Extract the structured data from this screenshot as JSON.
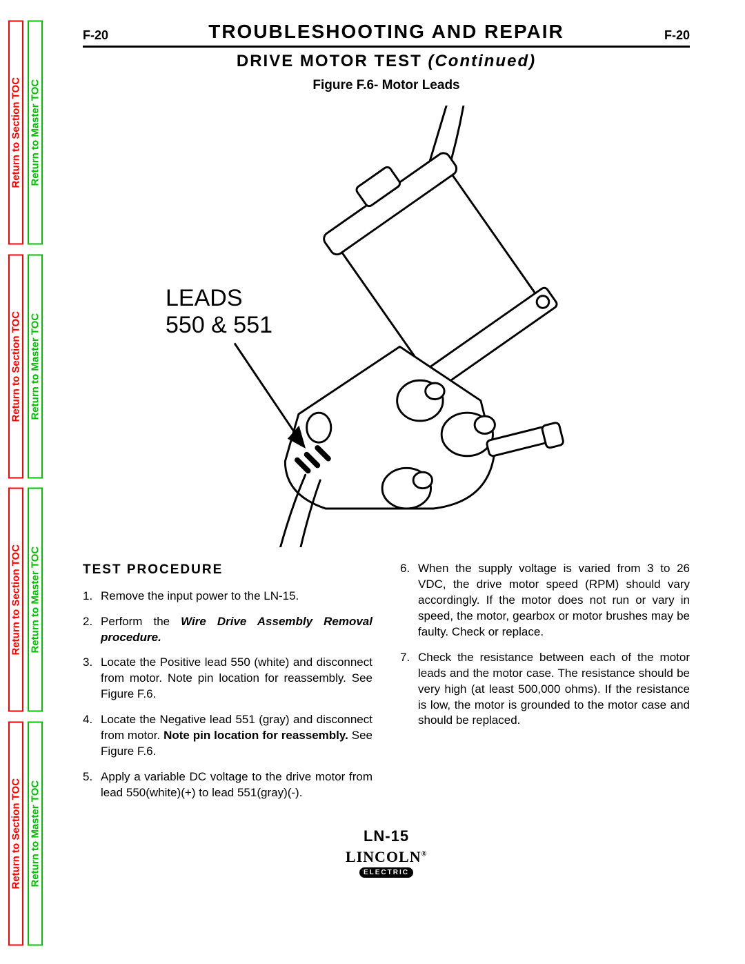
{
  "side_tabs": {
    "section_label": "Return to Section TOC",
    "master_label": "Return to Master TOC",
    "section_color": "#ff0000",
    "master_color": "#00c000",
    "repeat": 4
  },
  "header": {
    "page_code": "F-20",
    "title": "TROUBLESHOOTING  AND  REPAIR",
    "subtitle_main": "DRIVE  MOTOR  TEST",
    "subtitle_cont": "(Continued)"
  },
  "figure": {
    "caption": "Figure F.6- Motor Leads",
    "label_line1": "LEADS",
    "label_line2": "550 & 551",
    "stroke_color": "#000000",
    "fill_color": "#ffffff",
    "stroke_width": 3
  },
  "content": {
    "section_heading": "TEST  PROCEDURE",
    "steps_left": [
      {
        "n": 1,
        "html": "Remove the input power to the LN-15."
      },
      {
        "n": 2,
        "html": "Perform the <span class='bi'>Wire Drive Assembly Removal procedure.</span>"
      },
      {
        "n": 3,
        "html": "Locate the Positive lead 550 (white) and disconnect from motor.  Note pin location for reassembly.  See Figure F.6."
      },
      {
        "n": 4,
        "html": "Locate the Negative lead 551 (gray) and disconnect from motor. <span class='b'>Note pin location for reassembly.</span> See Figure F.6."
      },
      {
        "n": 5,
        "html": "Apply a variable DC voltage to the drive motor from lead 550(white)(+) to lead 551(gray)(-)."
      }
    ],
    "steps_right": [
      {
        "n": 6,
        "html": "When the supply voltage is varied from 3 to 26 VDC, the drive motor speed (RPM) should vary accordingly. If the motor does not run or vary in speed, the motor, gearbox or motor brushes may be faulty. Check or replace."
      },
      {
        "n": 7,
        "html": "Check the resistance between each of the motor leads and the motor case. The resistance should be very high (at least 500,000 ohms). If the resistance is low, the motor is grounded to the motor case and should be replaced."
      }
    ]
  },
  "footer": {
    "model": "LN-15",
    "brand": "LINCOLN",
    "brand_sub": "ELECTRIC"
  }
}
